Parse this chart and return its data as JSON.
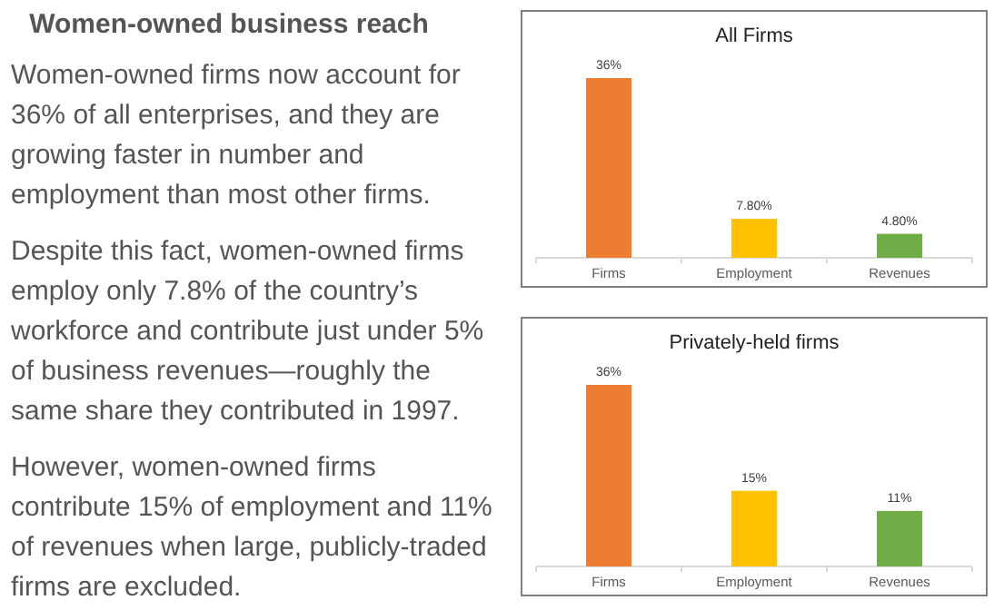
{
  "chart_data": [
    {
      "type": "other",
      "title": "Women-owned business reach",
      "annotations": [
        "Women-owned firms now account for 36% of all enterprises, and they are growing faster in number and employment than most other firms.",
        "Despite this fact, women-owned firms employ only 7.8% of the country’s workforce and contribute just under 5% of business revenues—roughly the same share they contributed in 1997.",
        "However, women-owned firms contribute 15% of employment and 11% of revenues when large, publicly-traded firms are excluded."
      ]
    },
    {
      "type": "bar",
      "title": "All Firms",
      "categories": [
        "Firms",
        "Employment",
        "Revenues"
      ],
      "values": [
        36,
        7.8,
        4.8
      ],
      "colors": [
        "#ed7d31",
        "#ffc000",
        "#70ad47"
      ],
      "value_labels": [
        "36%",
        "7.80%",
        "4.80%"
      ]
    },
    {
      "type": "bar",
      "title": "Privately-held firms",
      "categories": [
        "Firms",
        "Employment",
        "Revenues"
      ],
      "values": [
        36,
        15,
        11
      ],
      "colors": [
        "#ed7d31",
        "#ffc000",
        "#70ad47"
      ],
      "value_labels": [
        "36%",
        "15%",
        "11%"
      ]
    }
  ]
}
